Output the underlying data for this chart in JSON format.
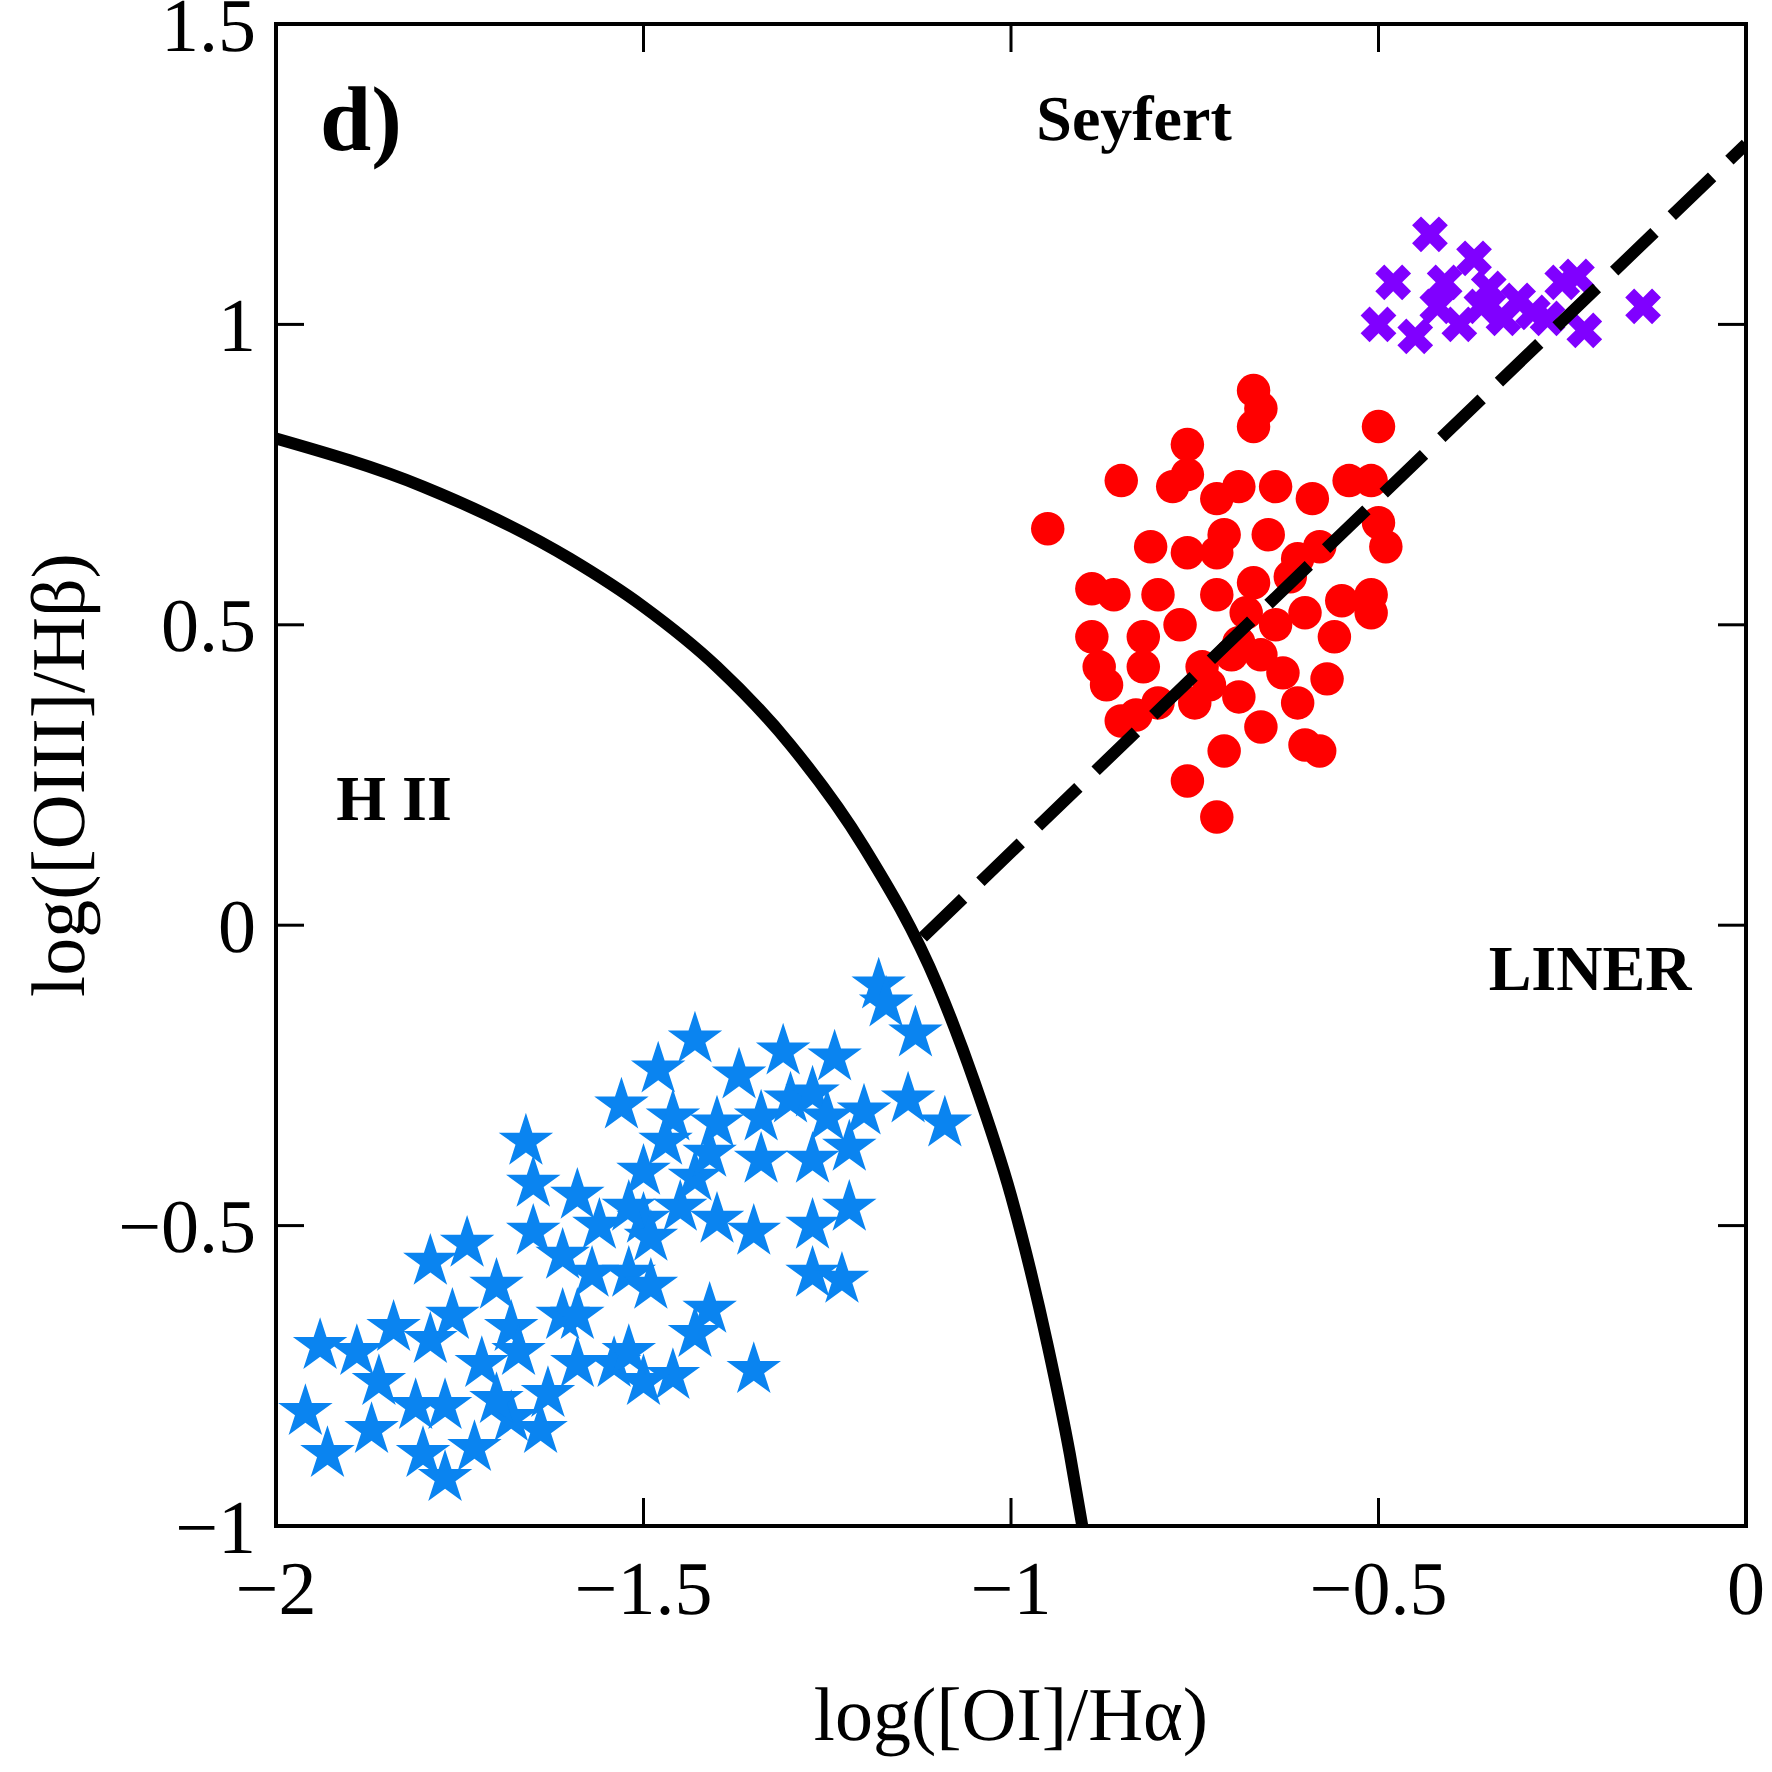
{
  "chart_data": {
    "type": "scatter",
    "xlabel": "log([OI]/Hα)",
    "ylabel": "log([OIII]/Hβ)",
    "xlim": [
      -2,
      0
    ],
    "ylim": [
      -1,
      1.5
    ],
    "xticks": [
      -2,
      -1.5,
      -1,
      -0.5,
      0
    ],
    "yticks": [
      -1,
      -0.5,
      0,
      0.5,
      1,
      1.5
    ],
    "grid": false,
    "annotations": [
      "d)",
      "Seyfert",
      "H II",
      "LINER"
    ],
    "series": [
      {
        "color": "#0a84f0",
        "marker": "star",
        "x": [
          -1.18,
          -1.17,
          -1.13,
          -1.09,
          -1.14,
          -1.2,
          -1.24,
          -1.31,
          -1.37,
          -1.43,
          -1.48,
          -1.53,
          -1.66,
          -1.65,
          -1.59,
          -1.46,
          -1.4,
          -1.34,
          -1.3,
          -1.27,
          -1.25,
          -1.22,
          -1.34,
          -1.27,
          -1.22,
          -1.27,
          -1.35,
          -1.27,
          -1.23,
          -1.41,
          -1.43,
          -1.35,
          -1.46,
          -1.5,
          -1.54,
          -1.59,
          -1.63,
          -1.64,
          -1.68,
          -1.73,
          -1.77,
          -1.8,
          -1.87,
          -1.93,
          -1.96,
          -1.94,
          -1.89,
          -1.86,
          -1.84,
          -1.79,
          -1.74,
          -1.79,
          -1.72,
          -1.7,
          -1.65,
          -1.61,
          -1.57,
          -1.52,
          -1.49,
          -1.56,
          -1.5,
          -1.45,
          -1.4,
          -1.43,
          -1.5,
          -1.52,
          -1.61,
          -1.68,
          -1.76,
          -1.81,
          -1.77,
          -1.7,
          -1.67,
          -1.59,
          -1.52,
          -1.47,
          -1.41,
          -1.49
        ],
        "values": [
          -0.1,
          -0.13,
          -0.18,
          -0.33,
          -0.29,
          -0.31,
          -0.22,
          -0.21,
          -0.25,
          -0.19,
          -0.24,
          -0.3,
          -0.36,
          -0.43,
          -0.45,
          -0.32,
          -0.33,
          -0.32,
          -0.29,
          -0.28,
          -0.32,
          -0.37,
          -0.39,
          -0.39,
          -0.47,
          -0.5,
          -0.51,
          -0.58,
          -0.59,
          -0.64,
          -0.68,
          -0.74,
          -0.75,
          -0.76,
          -0.73,
          -0.73,
          -0.78,
          -0.84,
          -0.82,
          -0.87,
          -0.92,
          -0.88,
          -0.84,
          -0.88,
          -0.81,
          -0.7,
          -0.71,
          -0.76,
          -0.67,
          -0.56,
          -0.53,
          -0.69,
          -0.73,
          -0.6,
          -0.51,
          -0.55,
          -0.58,
          -0.58,
          -0.6,
          -0.5,
          -0.49,
          -0.47,
          -0.49,
          -0.42,
          -0.41,
          -0.47,
          -0.65,
          -0.67,
          -0.65,
          -0.8,
          -0.8,
          -0.79,
          -0.71,
          -0.65,
          -0.71,
          -0.36,
          -0.38,
          -0.52
        ]
      },
      {
        "color": "#ff0000",
        "marker": "circle",
        "x": [
          -0.67,
          -0.66,
          -0.67,
          -0.5,
          -0.76,
          -0.85,
          -0.95,
          -0.78,
          -0.76,
          -0.59,
          -0.54,
          -0.51,
          -0.5,
          -0.49,
          -0.89,
          -0.86,
          -0.89,
          -0.88,
          -0.87,
          -0.85,
          -0.76,
          -0.72,
          -0.58,
          -0.6,
          -0.51,
          -0.51,
          -0.55,
          -0.69,
          -0.64,
          -0.72,
          -0.81,
          -0.8,
          -0.82,
          -0.82,
          -0.8,
          -0.71,
          -0.66,
          -0.61,
          -0.57,
          -0.56,
          -0.58,
          -0.61,
          -0.65,
          -0.71,
          -0.76,
          -0.77,
          -0.74,
          -0.69,
          -0.64,
          -0.6,
          -0.72,
          -0.67,
          -0.75,
          -0.69,
          -0.63,
          -0.83,
          -0.7,
          -0.68,
          -0.73,
          -0.66,
          -0.72,
          -0.62
        ],
        "values": [
          0.89,
          0.86,
          0.83,
          0.83,
          0.8,
          0.74,
          0.66,
          0.73,
          0.75,
          0.71,
          0.74,
          0.74,
          0.67,
          0.63,
          0.56,
          0.55,
          0.48,
          0.43,
          0.4,
          0.34,
          0.24,
          0.18,
          0.29,
          0.3,
          0.55,
          0.52,
          0.54,
          0.73,
          0.73,
          0.71,
          0.63,
          0.55,
          0.48,
          0.43,
          0.37,
          0.29,
          0.33,
          0.37,
          0.41,
          0.48,
          0.63,
          0.61,
          0.65,
          0.65,
          0.62,
          0.5,
          0.43,
          0.47,
          0.5,
          0.52,
          0.55,
          0.57,
          0.37,
          0.38,
          0.42,
          0.35,
          0.45,
          0.52,
          0.4,
          0.45,
          0.62,
          0.58
        ]
      },
      {
        "color": "#8000ff",
        "marker": "cross",
        "x": [
          -0.43,
          -0.48,
          -0.5,
          -0.45,
          -0.37,
          -0.35,
          -0.31,
          -0.25,
          -0.23,
          -0.27,
          -0.22,
          -0.14,
          -0.42,
          -0.39,
          -0.33,
          -0.29,
          -0.41,
          -0.36
        ],
        "values": [
          1.15,
          1.07,
          1.0,
          0.98,
          1.11,
          1.06,
          1.04,
          1.07,
          1.08,
          1.01,
          0.99,
          1.03,
          1.03,
          1.0,
          1.01,
          1.02,
          1.07,
          1.03
        ]
      },
      {
        "type": "line",
        "color": "#000000",
        "line_style": "solid",
        "x": [
          -2,
          -1.8,
          -1.6,
          -1.5,
          -1.4,
          -1.3,
          -1.2,
          -1.1,
          -1.05,
          -1.0,
          -0.95,
          -0.92,
          -0.903
        ],
        "values": [
          0.81,
          0.73,
          0.61,
          0.53,
          0.43,
          0.3,
          0.13,
          -0.1,
          -0.26,
          -0.45,
          -0.7,
          -0.88,
          -1.0
        ]
      },
      {
        "type": "line",
        "color": "#000000",
        "line_style": "dashed",
        "x": [
          -1.12,
          0
        ],
        "values": [
          -0.02,
          1.3
        ]
      }
    ]
  }
}
